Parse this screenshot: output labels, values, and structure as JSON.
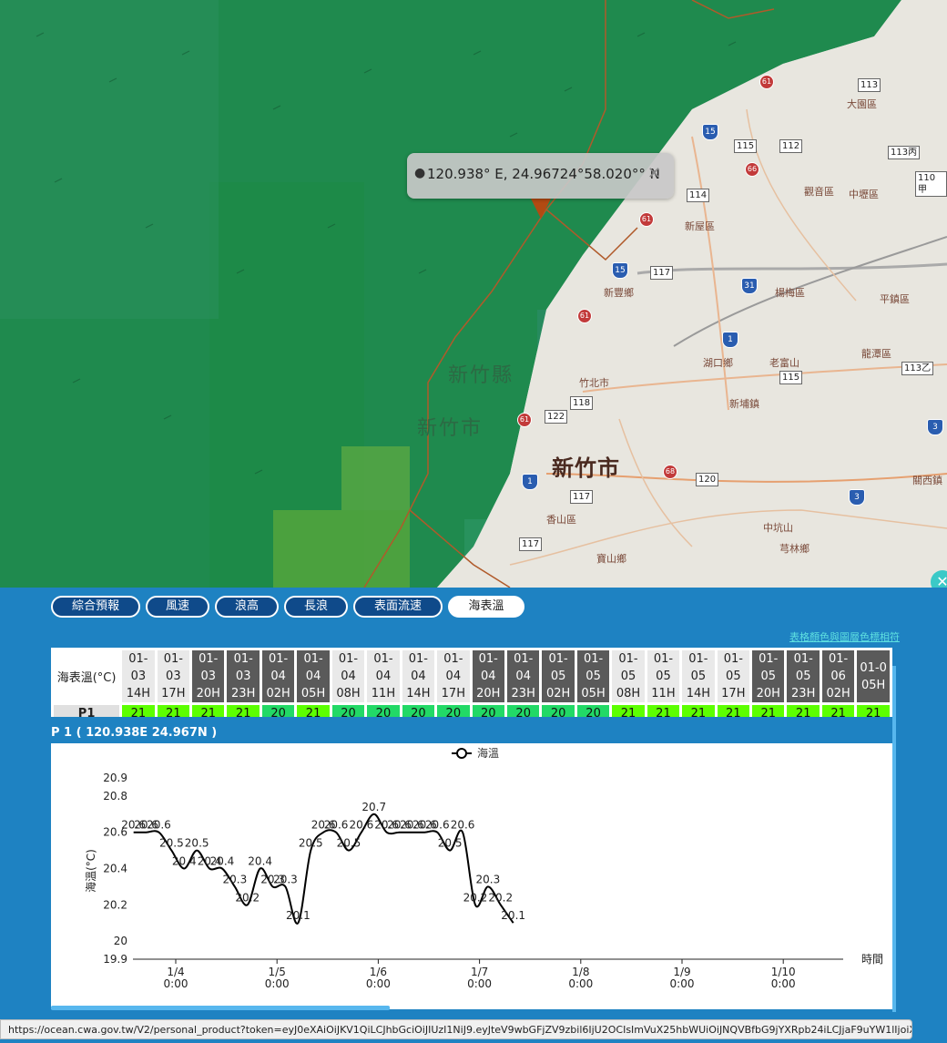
{
  "map": {
    "popup_text": "120.938° E, 24.96724°58.020°° N",
    "places": [
      {
        "name": "大園區",
        "x": 930,
        "y": 106
      },
      {
        "name": "觀音區",
        "x": 883,
        "y": 202
      },
      {
        "name": "中壢區",
        "x": 932,
        "y": 205
      },
      {
        "name": "新屋區",
        "x": 752,
        "y": 240
      },
      {
        "name": "新豐鄉",
        "x": 663,
        "y": 313
      },
      {
        "name": "楊梅區",
        "x": 851,
        "y": 313
      },
      {
        "name": "平鎮區",
        "x": 966,
        "y": 320
      },
      {
        "name": "老富山",
        "x": 845,
        "y": 390
      },
      {
        "name": "湖口鄉",
        "x": 772,
        "y": 390
      },
      {
        "name": "龍潭區",
        "x": 946,
        "y": 380
      },
      {
        "name": "竹北市",
        "x": 636,
        "y": 412
      },
      {
        "name": "新埔鎮",
        "x": 801,
        "y": 435
      },
      {
        "name": "香山區",
        "x": 600,
        "y": 562
      },
      {
        "name": "中坑山",
        "x": 838,
        "y": 571
      },
      {
        "name": "芎林鄉",
        "x": 856,
        "y": 594
      },
      {
        "name": "寶山鄉",
        "x": 655,
        "y": 605
      },
      {
        "name": "關西鎮",
        "x": 1002,
        "y": 519
      }
    ],
    "big_city": "新竹市",
    "county_label": "新竹縣",
    "city_label_sea": "新竹市",
    "route_shields": [
      "113",
      "115",
      "112",
      "113丙",
      "110甲",
      "114",
      "117",
      "118",
      "122",
      "120",
      "117",
      "117",
      "115",
      "113乙"
    ],
    "expressway_shields": [
      "15",
      "1",
      "15",
      "1",
      "1",
      "3",
      "31"
    ],
    "provincial_shields": [
      "61",
      "66",
      "61",
      "61",
      "61",
      "68"
    ]
  },
  "tabs": [
    "綜合預報",
    "風速",
    "浪高",
    "長浪",
    "表面流速",
    "海表溫"
  ],
  "active_tab": "海表溫",
  "legend_link": "表格顏色與圖層色標相符",
  "grid": {
    "corner_label": "海表溫(°C)",
    "row_label": "P1",
    "columns": [
      {
        "d": "01-03",
        "h": "14H",
        "v": "21",
        "dark": false
      },
      {
        "d": "01-03",
        "h": "17H",
        "v": "21",
        "dark": false
      },
      {
        "d": "01-03",
        "h": "20H",
        "v": "21",
        "dark": true
      },
      {
        "d": "01-03",
        "h": "23H",
        "v": "21",
        "dark": true
      },
      {
        "d": "01-04",
        "h": "02H",
        "v": "20",
        "dark": true
      },
      {
        "d": "01-04",
        "h": "05H",
        "v": "21",
        "dark": true
      },
      {
        "d": "01-04",
        "h": "08H",
        "v": "20",
        "dark": false
      },
      {
        "d": "01-04",
        "h": "11H",
        "v": "20",
        "dark": false
      },
      {
        "d": "01-04",
        "h": "14H",
        "v": "20",
        "dark": false
      },
      {
        "d": "01-04",
        "h": "17H",
        "v": "20",
        "dark": false
      },
      {
        "d": "01-04",
        "h": "20H",
        "v": "20",
        "dark": true
      },
      {
        "d": "01-04",
        "h": "23H",
        "v": "20",
        "dark": true
      },
      {
        "d": "01-05",
        "h": "02H",
        "v": "20",
        "dark": true
      },
      {
        "d": "01-05",
        "h": "05H",
        "v": "20",
        "dark": true
      },
      {
        "d": "01-05",
        "h": "08H",
        "v": "21",
        "dark": false
      },
      {
        "d": "01-05",
        "h": "11H",
        "v": "21",
        "dark": false
      },
      {
        "d": "01-05",
        "h": "14H",
        "v": "21",
        "dark": false
      },
      {
        "d": "01-05",
        "h": "17H",
        "v": "21",
        "dark": false
      },
      {
        "d": "01-05",
        "h": "20H",
        "v": "21",
        "dark": true
      },
      {
        "d": "01-05",
        "h": "23H",
        "v": "21",
        "dark": true
      },
      {
        "d": "01-06",
        "h": "02H",
        "v": "21",
        "dark": true
      },
      {
        "d": "01-0",
        "h": "05H",
        "v": "21",
        "dark": true
      }
    ],
    "color_21": "#5cff00",
    "color_20": "#22d966"
  },
  "chart_title": "P 1 ( 120.938E 24.967N )",
  "chart_data": {
    "type": "line",
    "legend": "海溫",
    "ylabel": "海溫(°C)",
    "xlabel": "時間",
    "ylim": [
      19.9,
      20.9
    ],
    "yticks": [
      "20.9",
      "20.8",
      "20.6",
      "20.4",
      "20.2",
      "20",
      "19.9"
    ],
    "xticks": [
      {
        "d": "1/4",
        "t": "0:00"
      },
      {
        "d": "1/5",
        "t": "0:00"
      },
      {
        "d": "1/6",
        "t": "0:00"
      },
      {
        "d": "1/7",
        "t": "0:00"
      },
      {
        "d": "1/8",
        "t": "0:00"
      },
      {
        "d": "1/9",
        "t": "0:00"
      },
      {
        "d": "1/10",
        "t": "0:00"
      }
    ],
    "series": [
      {
        "name": "海溫",
        "values": [
          20.6,
          20.6,
          20.6,
          20.5,
          20.4,
          20.5,
          20.4,
          20.4,
          20.3,
          20.2,
          20.4,
          20.3,
          20.3,
          20.1,
          20.5,
          20.6,
          20.6,
          20.5,
          20.6,
          20.7,
          20.6,
          20.6,
          20.6,
          20.6,
          20.6,
          20.5,
          20.6,
          20.2,
          20.3,
          20.2,
          20.1
        ]
      }
    ],
    "start_hour_offset": -10,
    "step_hours": 3
  },
  "status_url": "https://ocean.cwa.gov.tw/V2/personal_product?token=eyJ0eXAiOiJKV1QiLCJhbGciOiJIUzI1NiJ9.eyJteV9wbGFjZV9zbil6IjU2OCIsImVuX25hbWUiOiJNQVBfbG9jYXRpb24iLCJjaF9uYW1lIjoiX..."
}
